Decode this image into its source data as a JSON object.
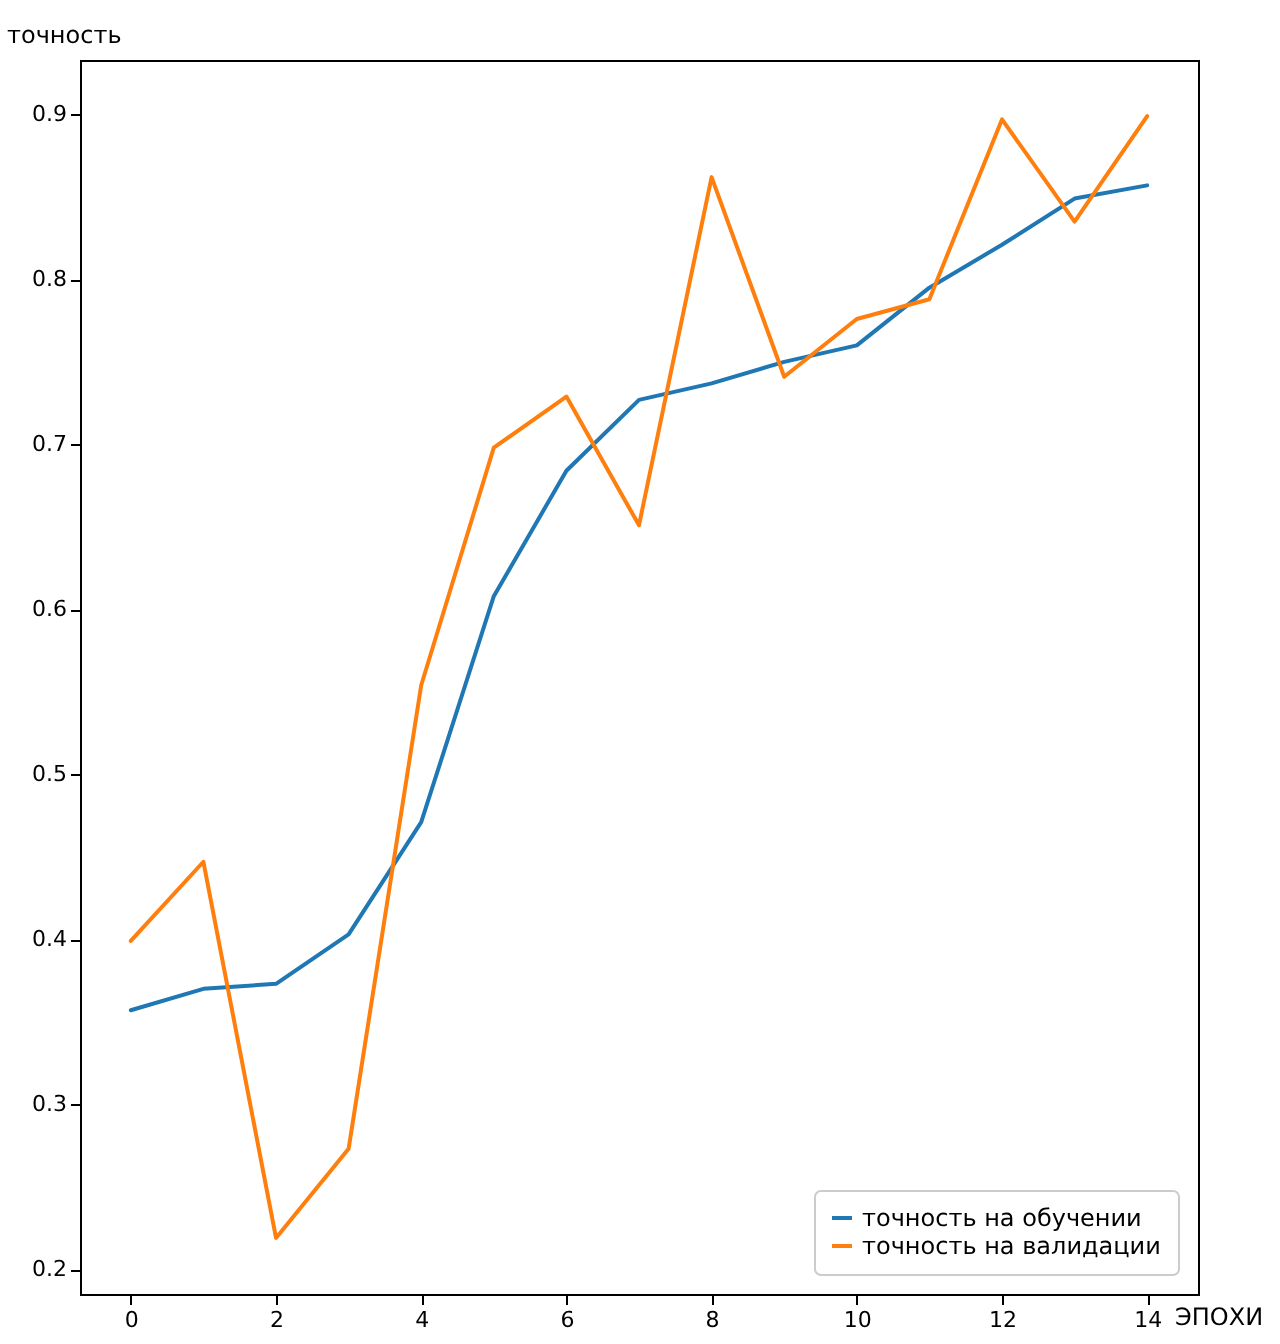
{
  "chart_data": {
    "type": "line",
    "ylabel": "точность",
    "xlabel": "ЭПОХИ",
    "x": [
      0,
      1,
      2,
      3,
      4,
      5,
      6,
      7,
      8,
      9,
      10,
      11,
      12,
      13,
      14
    ],
    "series": [
      {
        "name": "точность на обучении",
        "color": "#1f77b4",
        "values": [
          0.357,
          0.37,
          0.373,
          0.403,
          0.471,
          0.608,
          0.684,
          0.727,
          0.737,
          0.75,
          0.76,
          0.795,
          0.821,
          0.849,
          0.857
        ]
      },
      {
        "name": "точность на валидации",
        "color": "#ff7f0e",
        "values": [
          0.399,
          0.447,
          0.219,
          0.273,
          0.554,
          0.698,
          0.729,
          0.651,
          0.862,
          0.741,
          0.776,
          0.788,
          0.897,
          0.835,
          0.899
        ]
      }
    ],
    "xlim": [
      -0.7,
      14.7
    ],
    "xticks": [
      0,
      2,
      4,
      6,
      8,
      10,
      12,
      14
    ],
    "ylim": [
      0.185,
      0.933
    ],
    "yticks": [
      0.2,
      0.3,
      0.4,
      0.5,
      0.6,
      0.7,
      0.8,
      0.9
    ],
    "legend": "bottom right",
    "grid": false
  }
}
